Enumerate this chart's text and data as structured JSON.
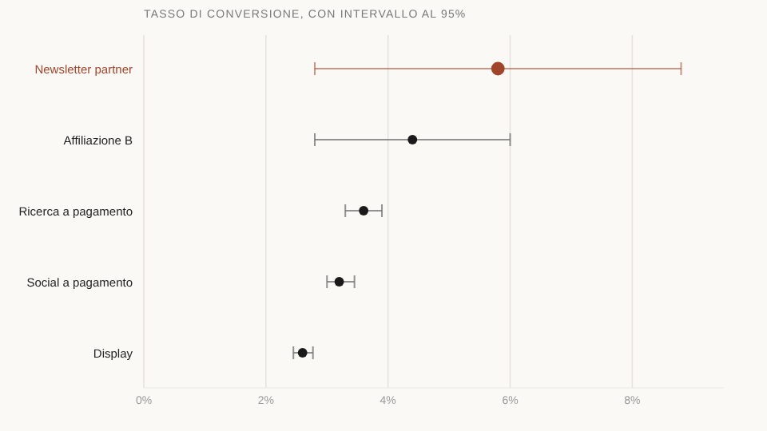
{
  "chart_data": {
    "type": "scatter",
    "orientation": "horizontal",
    "title": "TASSO DI CONVERSIONE, CON INTERVALLO AL 95%",
    "categories": [
      "Newsletter partner",
      "Affiliazione B",
      "Ricerca a pagamento",
      "Social a pagamento",
      "Display"
    ],
    "values": [
      5.8,
      4.4,
      3.6,
      3.2,
      2.6
    ],
    "errors": [
      [
        2.8,
        8.8
      ],
      [
        2.8,
        6.0
      ],
      [
        3.3,
        3.9
      ],
      [
        3.0,
        3.45
      ],
      [
        2.45,
        2.77
      ]
    ],
    "colors": [
      "#a0452a",
      "#1a1a1a",
      "#1a1a1a",
      "#1a1a1a",
      "#1a1a1a"
    ],
    "sizes": [
      1,
      0.5,
      0.5,
      0.5,
      0.5
    ],
    "xlim": [
      0,
      9.5
    ],
    "xticks": [
      {
        "value": 0,
        "label": "0%"
      },
      {
        "value": 2,
        "label": "2%"
      },
      {
        "value": 4,
        "label": "4%"
      },
      {
        "value": 6,
        "label": "6%"
      },
      {
        "value": 8,
        "label": "8%"
      }
    ],
    "grid": "x",
    "marker": "circle"
  }
}
